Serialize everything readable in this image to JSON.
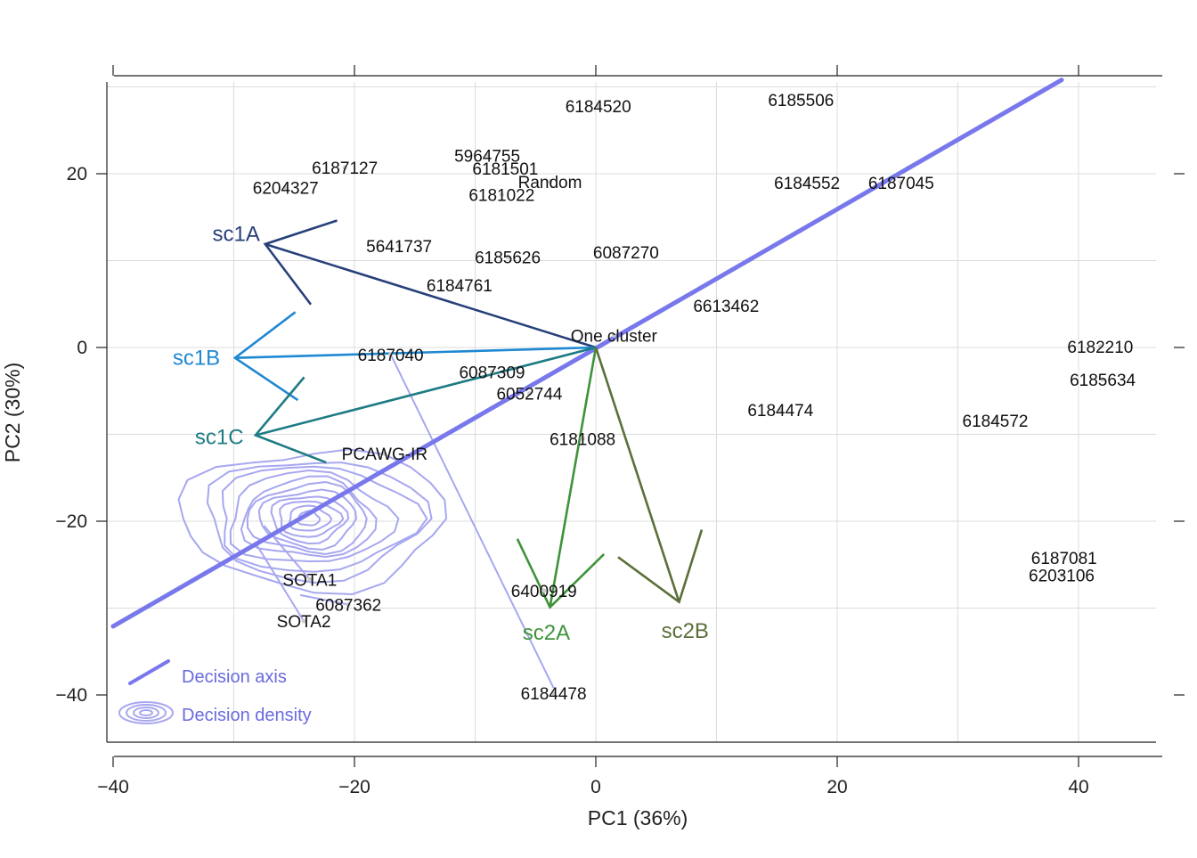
{
  "chart_data": {
    "type": "scatter",
    "xlabel": "PC1 (36%)",
    "ylabel": "PC2 (30%)",
    "xlim": [
      -40,
      47
    ],
    "ylim": [
      -45,
      31
    ],
    "xticks": [
      -40,
      -20,
      0,
      20,
      40
    ],
    "yticks": [
      -40,
      -20,
      0,
      20
    ],
    "xtick_labels": [
      "−40",
      "−20",
      "0",
      "20",
      "40"
    ],
    "ytick_labels": [
      "−40",
      "−20",
      "0",
      "20"
    ],
    "grid_x": [
      -30,
      -20,
      -10,
      0,
      10,
      20,
      30,
      40
    ],
    "grid_y": [
      -30,
      -20,
      -10,
      0,
      10,
      20,
      30
    ],
    "points": [
      {
        "label": "6184520",
        "x": 0.2,
        "y": 27.8
      },
      {
        "label": "6185506",
        "x": 17,
        "y": 28.5
      },
      {
        "label": "6187127",
        "x": -20.8,
        "y": 20.7
      },
      {
        "label": "6204327",
        "x": -25.7,
        "y": 18.4
      },
      {
        "label": "5964755",
        "x": -9,
        "y": 22.1
      },
      {
        "label": "6181501",
        "x": -7.5,
        "y": 20.6
      },
      {
        "label": "Random",
        "x": -3.8,
        "y": 19.1
      },
      {
        "label": "6181022",
        "x": -7.8,
        "y": 17.6
      },
      {
        "label": "6184552",
        "x": 17.5,
        "y": 19.0
      },
      {
        "label": "6187045",
        "x": 25.3,
        "y": 19.0
      },
      {
        "label": "5641737",
        "x": -16.3,
        "y": 11.7
      },
      {
        "label": "6185626",
        "x": -7.3,
        "y": 10.4
      },
      {
        "label": "6087270",
        "x": 2.5,
        "y": 11.0
      },
      {
        "label": "6184761",
        "x": -11.3,
        "y": 7.2
      },
      {
        "label": "6613462",
        "x": 10.8,
        "y": 4.8
      },
      {
        "label": "One cluster",
        "x": 1.5,
        "y": 1.4
      },
      {
        "label": "6187040",
        "x": -17,
        "y": -0.8
      },
      {
        "label": "6087309",
        "x": -8.6,
        "y": -2.8
      },
      {
        "label": "6052744",
        "x": -5.5,
        "y": -5.3
      },
      {
        "label": "6184474",
        "x": 15.3,
        "y": -7.2
      },
      {
        "label": "6184572",
        "x": 33.1,
        "y": -8.4
      },
      {
        "label": "6182210",
        "x": 41.8,
        "y": 0.1
      },
      {
        "label": "6185634",
        "x": 42.0,
        "y": -3.7
      },
      {
        "label": "6181088",
        "x": -1.1,
        "y": -10.5
      },
      {
        "label": "PCAWG-IR",
        "x": -17.5,
        "y": -12.2
      },
      {
        "label": "6187081",
        "x": 38.8,
        "y": -24.2
      },
      {
        "label": "6203106",
        "x": 38.6,
        "y": -26.2
      },
      {
        "label": "SOTA1",
        "x": -23.7,
        "y": -26.7
      },
      {
        "label": "6087362",
        "x": -20.5,
        "y": -29.6
      },
      {
        "label": "SOTA2",
        "x": -24.2,
        "y": -31.5
      },
      {
        "label": "6400919",
        "x": -4.3,
        "y": -28.0
      },
      {
        "label": "6184478",
        "x": -3.5,
        "y": -39.8
      }
    ],
    "arrows": [
      {
        "name": "sc1A",
        "label": "sc1A",
        "color": "#27407a",
        "tip": [
          -27.4,
          11.9
        ],
        "labelPos": [
          -29.8,
          13.1
        ]
      },
      {
        "name": "sc1B",
        "label": "sc1B",
        "color": "#1f88d2",
        "tip": [
          -29.9,
          -1.2
        ],
        "labelPos": [
          -33.1,
          -1.2
        ]
      },
      {
        "name": "sc1C",
        "label": "sc1C",
        "color": "#1e7c84",
        "tip": [
          -28.2,
          -10.1
        ],
        "labelPos": [
          -31.2,
          -10.3
        ]
      },
      {
        "name": "sc2A",
        "label": "sc2A",
        "color": "#3e933a",
        "tip": [
          -3.8,
          -29.9
        ],
        "labelPos": [
          -4.1,
          -32.8
        ]
      },
      {
        "name": "sc2B",
        "label": "sc2B",
        "color": "#5b6f3a",
        "tip": [
          6.9,
          -29.3
        ],
        "labelPos": [
          7.4,
          -32.6
        ]
      }
    ],
    "decision_axis": {
      "from": [
        -40,
        -32.1
      ],
      "to": [
        38.6,
        30.8
      ],
      "color": "#7878ec"
    },
    "density_center": [
      -23.8,
      -19.7
    ],
    "legend": {
      "placement": "bottom-left",
      "items": [
        "Decision axis",
        "Decision density"
      ]
    }
  },
  "colors": {
    "axis_line": "#7878ec",
    "density": "#a7a7f0",
    "grid": "#dcdcdc",
    "frame": "#222222"
  }
}
